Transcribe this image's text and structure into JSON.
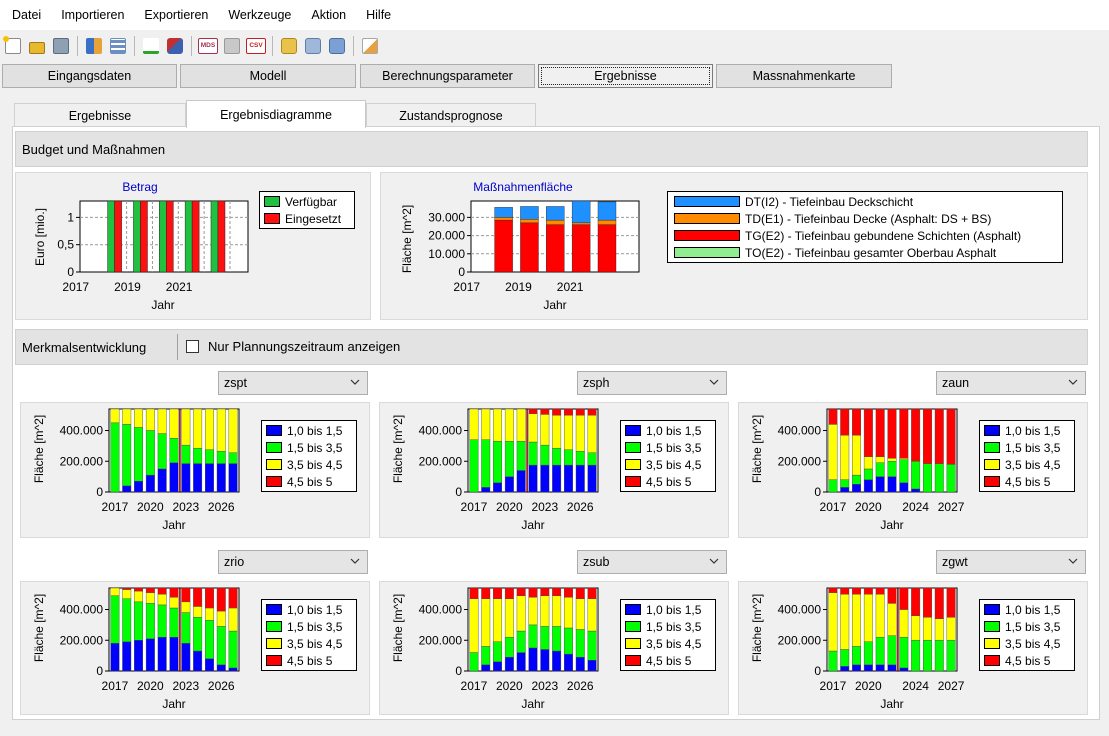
{
  "menu": [
    "Datei",
    "Importieren",
    "Exportieren",
    "Werkzeuge",
    "Aktion",
    "Hilfe"
  ],
  "toolbar_icons": [
    "new-file-icon",
    "open-folder-icon",
    "save-icon",
    "users-icon",
    "table-icon",
    "spellcheck-icon",
    "tools-icon",
    "mds-icon",
    "export-gray-icon",
    "csv-icon",
    "database-import-icon",
    "database-search-icon",
    "database-export-icon",
    "edit-note-icon"
  ],
  "main_buttons": [
    "Eingangsdaten",
    "Modell",
    "Berechnungsparameter",
    "Ergebnisse",
    "Massnahmenkarte"
  ],
  "sub_tabs": [
    "Ergebnisse",
    "Ergebnisdiagramme",
    "Zustandsprognose"
  ],
  "sections": {
    "budget": "Budget und Maßnahmen",
    "merkmal": "Merkmalsentwicklung",
    "checkbox_label": "Nur Plannungszeitraum anzeigen"
  },
  "colors": {
    "blue": "#0000ff",
    "green": "#00ff00",
    "yellow": "#ffff00",
    "red": "#ff0000",
    "budget_green": "#22c040",
    "budget_red": "#ff1010",
    "dt_blue": "#1e90ff",
    "orange": "#ff8c00",
    "light_green": "#90ee90"
  },
  "legends": {
    "budget": [
      "Verfügbar",
      "Eingesetzt"
    ],
    "massnahmen": [
      "DT(I2) - Tiefeinbau Deckschicht",
      "TD(E1) - Tiefeinbau Decke (Asphalt: DS + BS)",
      "TG(E2) - Tiefeinbau gebundene Schichten (Asphalt)",
      "TO(E2) - Tiefeinbau gesamter Oberbau Asphalt"
    ],
    "classes": [
      "1,0 bis 1,5",
      "1,5 bis 3,5",
      "3,5 bis 4,5",
      "4,5 bis 5"
    ]
  },
  "chart_data": [
    {
      "type": "bar",
      "title": "Betrag",
      "ylabel": "Euro [mio.]",
      "xlabel": "Jahr",
      "ylim": [
        0,
        1.3
      ],
      "yticks": [
        0,
        0.5,
        1
      ],
      "ytick_labels": [
        "0",
        "0,5",
        "1"
      ],
      "xticks": [
        "2017",
        "2019",
        "2021"
      ],
      "categories": [
        "2018",
        "2019",
        "2020",
        "2021",
        "2022"
      ],
      "series": [
        {
          "name": "Verfügbar",
          "values": [
            1.3,
            1.3,
            1.3,
            1.3,
            1.3
          ]
        },
        {
          "name": "Eingesetzt",
          "values": [
            1.3,
            1.3,
            1.3,
            1.3,
            1.3
          ]
        }
      ]
    },
    {
      "type": "bar",
      "title": "Maßnahmenfläche",
      "ylabel": "Fläche [m^2]",
      "xlabel": "Jahr",
      "ylim": [
        0,
        39000
      ],
      "yticks": [
        0,
        10000,
        20000,
        30000
      ],
      "ytick_labels": [
        "0",
        "10.000",
        "20.000",
        "30.000"
      ],
      "xticks": [
        "2017",
        "2019",
        "2021"
      ],
      "categories": [
        "2018",
        "2019",
        "2020",
        "2021",
        "2022"
      ],
      "stacked": true,
      "series": [
        {
          "name": "TO(E2) - Tiefeinbau gesamter Oberbau Asphalt",
          "values": [
            0,
            0,
            0,
            0,
            0
          ]
        },
        {
          "name": "TG(E2) - Tiefeinbau gebundene Schichten (Asphalt)",
          "values": [
            28500,
            27000,
            26000,
            26000,
            26000
          ]
        },
        {
          "name": "TD(E1) - Tiefeinbau Decke (Asphalt: DS + BS)",
          "values": [
            1500,
            2000,
            2500,
            1000,
            2500
          ]
        },
        {
          "name": "DT(I2) - Tiefeinbau Deckschicht",
          "values": [
            5500,
            7000,
            7500,
            12000,
            10000
          ]
        }
      ]
    },
    {
      "type": "bar",
      "stacked": true,
      "dropdown": "zspt",
      "ylabel": "Fläche [m^2]",
      "xlabel": "Jahr",
      "ylim": [
        0,
        540000
      ],
      "yticks": [
        0,
        200000,
        400000
      ],
      "ytick_labels": [
        "0",
        "200.000",
        "400.000"
      ],
      "x": [
        2017,
        2018,
        2019,
        2020,
        2021,
        2022,
        2023,
        2024,
        2025,
        2026,
        2027
      ],
      "xticks": [
        "2017",
        "2020",
        "2023",
        "2026"
      ],
      "marker_year": 2022.5,
      "series": [
        {
          "name": "1,0 bis 1,5",
          "values": [
            0,
            40000,
            70000,
            110000,
            150000,
            190000,
            185000,
            185000,
            185000,
            185000,
            185000
          ]
        },
        {
          "name": "1,5 bis 3,5",
          "values": [
            450000,
            400000,
            350000,
            290000,
            230000,
            160000,
            120000,
            100000,
            90000,
            80000,
            70000
          ]
        },
        {
          "name": "3,5 bis 4,5",
          "values": [
            90000,
            100000,
            120000,
            140000,
            160000,
            190000,
            235000,
            255000,
            265000,
            275000,
            285000
          ]
        },
        {
          "name": "4,5 bis 5",
          "values": [
            0,
            0,
            0,
            0,
            0,
            0,
            0,
            0,
            0,
            0,
            0
          ]
        }
      ]
    },
    {
      "type": "bar",
      "stacked": true,
      "dropdown": "zsph",
      "ylabel": "Fläche [m^2]",
      "xlabel": "Jahr",
      "ylim": [
        0,
        540000
      ],
      "yticks": [
        0,
        200000,
        400000
      ],
      "ytick_labels": [
        "0",
        "200.000",
        "400.000"
      ],
      "x": [
        2017,
        2018,
        2019,
        2020,
        2021,
        2022,
        2023,
        2024,
        2025,
        2026,
        2027
      ],
      "xticks": [
        "2017",
        "2020",
        "2023",
        "2026"
      ],
      "marker_year": 2021.5,
      "series": [
        {
          "name": "1,0 bis 1,5",
          "values": [
            0,
            30000,
            60000,
            100000,
            140000,
            175000,
            175000,
            175000,
            175000,
            175000,
            175000
          ]
        },
        {
          "name": "1,5 bis 3,5",
          "values": [
            340000,
            310000,
            270000,
            230000,
            190000,
            150000,
            130000,
            110000,
            100000,
            90000,
            80000
          ]
        },
        {
          "name": "3,5 bis 4,5",
          "values": [
            200000,
            200000,
            210000,
            210000,
            210000,
            185000,
            200000,
            215000,
            225000,
            235000,
            245000
          ]
        },
        {
          "name": "4,5 bis 5",
          "values": [
            0,
            0,
            0,
            0,
            0,
            30000,
            35000,
            40000,
            40000,
            40000,
            40000
          ]
        }
      ]
    },
    {
      "type": "bar",
      "stacked": true,
      "dropdown": "zaun",
      "ylabel": "Fläche [m^2]",
      "xlabel": "Jahr",
      "ylim": [
        0,
        540000
      ],
      "yticks": [
        0,
        200000,
        400000
      ],
      "ytick_labels": [
        "0",
        "200.000",
        "400.000"
      ],
      "x": [
        2017,
        2018,
        2019,
        2020,
        2021,
        2022,
        2023,
        2024,
        2025,
        2026,
        2027
      ],
      "xticks": [
        "2017",
        "2020",
        "2024",
        "2027"
      ],
      "series": [
        {
          "name": "1,0 bis 1,5",
          "values": [
            0,
            30000,
            50000,
            80000,
            100000,
            100000,
            60000,
            20000,
            0,
            0,
            0
          ]
        },
        {
          "name": "1,5 bis 3,5",
          "values": [
            80000,
            50000,
            60000,
            70000,
            90000,
            100000,
            150000,
            180000,
            185000,
            185000,
            180000
          ]
        },
        {
          "name": "3,5 bis 4,5",
          "values": [
            360000,
            290000,
            260000,
            80000,
            40000,
            20000,
            10000,
            0,
            0,
            0,
            0
          ]
        },
        {
          "name": "4,5 bis 5",
          "values": [
            100000,
            170000,
            170000,
            310000,
            310000,
            320000,
            320000,
            340000,
            355000,
            355000,
            360000
          ]
        }
      ]
    },
    {
      "type": "bar",
      "stacked": true,
      "dropdown": "zrio",
      "ylabel": "Fläche [m^2]",
      "xlabel": "Jahr",
      "ylim": [
        0,
        540000
      ],
      "yticks": [
        0,
        200000,
        400000
      ],
      "ytick_labels": [
        "0",
        "200.000",
        "400.000"
      ],
      "x": [
        2017,
        2018,
        2019,
        2020,
        2021,
        2022,
        2023,
        2024,
        2025,
        2026,
        2027
      ],
      "xticks": [
        "2017",
        "2020",
        "2023",
        "2026"
      ],
      "marker_year": 2022.5,
      "series": [
        {
          "name": "1,0 bis 1,5",
          "values": [
            180000,
            190000,
            200000,
            210000,
            220000,
            220000,
            180000,
            130000,
            80000,
            40000,
            20000
          ]
        },
        {
          "name": "1,5 bis 3,5",
          "values": [
            310000,
            280000,
            250000,
            230000,
            210000,
            190000,
            200000,
            220000,
            250000,
            250000,
            240000
          ]
        },
        {
          "name": "3,5 bis 4,5",
          "values": [
            50000,
            60000,
            70000,
            70000,
            70000,
            70000,
            70000,
            70000,
            80000,
            100000,
            150000
          ]
        },
        {
          "name": "4,5 bis 5",
          "values": [
            0,
            10000,
            20000,
            30000,
            40000,
            60000,
            90000,
            120000,
            130000,
            150000,
            130000
          ]
        }
      ]
    },
    {
      "type": "bar",
      "stacked": true,
      "dropdown": "zsub",
      "ylabel": "Fläche [m^2]",
      "xlabel": "Jahr",
      "ylim": [
        0,
        540000
      ],
      "yticks": [
        0,
        200000,
        400000
      ],
      "ytick_labels": [
        "0",
        "200.000",
        "400.000"
      ],
      "x": [
        2017,
        2018,
        2019,
        2020,
        2021,
        2022,
        2023,
        2024,
        2025,
        2026,
        2027
      ],
      "xticks": [
        "2017",
        "2020",
        "2023",
        "2026"
      ],
      "series": [
        {
          "name": "1,0 bis 1,5",
          "values": [
            0,
            40000,
            60000,
            90000,
            120000,
            150000,
            140000,
            130000,
            110000,
            90000,
            70000
          ]
        },
        {
          "name": "1,5 bis 3,5",
          "values": [
            120000,
            120000,
            130000,
            130000,
            140000,
            150000,
            150000,
            160000,
            170000,
            180000,
            190000
          ]
        },
        {
          "name": "3,5 bis 4,5",
          "values": [
            350000,
            310000,
            280000,
            250000,
            230000,
            180000,
            200000,
            200000,
            200000,
            200000,
            210000
          ]
        },
        {
          "name": "4,5 bis 5",
          "values": [
            70000,
            70000,
            70000,
            70000,
            50000,
            60000,
            50000,
            50000,
            60000,
            70000,
            70000
          ]
        }
      ]
    },
    {
      "type": "bar",
      "stacked": true,
      "dropdown": "zgwt",
      "ylabel": "Fläche [m^2]",
      "xlabel": "Jahr",
      "ylim": [
        0,
        540000
      ],
      "yticks": [
        0,
        200000,
        400000
      ],
      "ytick_labels": [
        "0",
        "200.000",
        "400.000"
      ],
      "x": [
        2017,
        2018,
        2019,
        2020,
        2021,
        2022,
        2023,
        2024,
        2025,
        2026,
        2027
      ],
      "xticks": [
        "2017",
        "2020",
        "2024",
        "2027"
      ],
      "marker_year": 2022.5,
      "series": [
        {
          "name": "1,0 bis 1,5",
          "values": [
            0,
            30000,
            40000,
            40000,
            40000,
            40000,
            20000,
            0,
            0,
            0,
            0
          ]
        },
        {
          "name": "1,5 bis 3,5",
          "values": [
            130000,
            110000,
            120000,
            150000,
            180000,
            190000,
            200000,
            200000,
            200000,
            200000,
            200000
          ]
        },
        {
          "name": "3,5 bis 4,5",
          "values": [
            380000,
            360000,
            340000,
            310000,
            280000,
            210000,
            180000,
            160000,
            150000,
            140000,
            150000
          ]
        },
        {
          "name": "4,5 bis 5",
          "values": [
            30000,
            40000,
            40000,
            40000,
            40000,
            100000,
            140000,
            180000,
            190000,
            200000,
            190000
          ]
        }
      ]
    }
  ]
}
